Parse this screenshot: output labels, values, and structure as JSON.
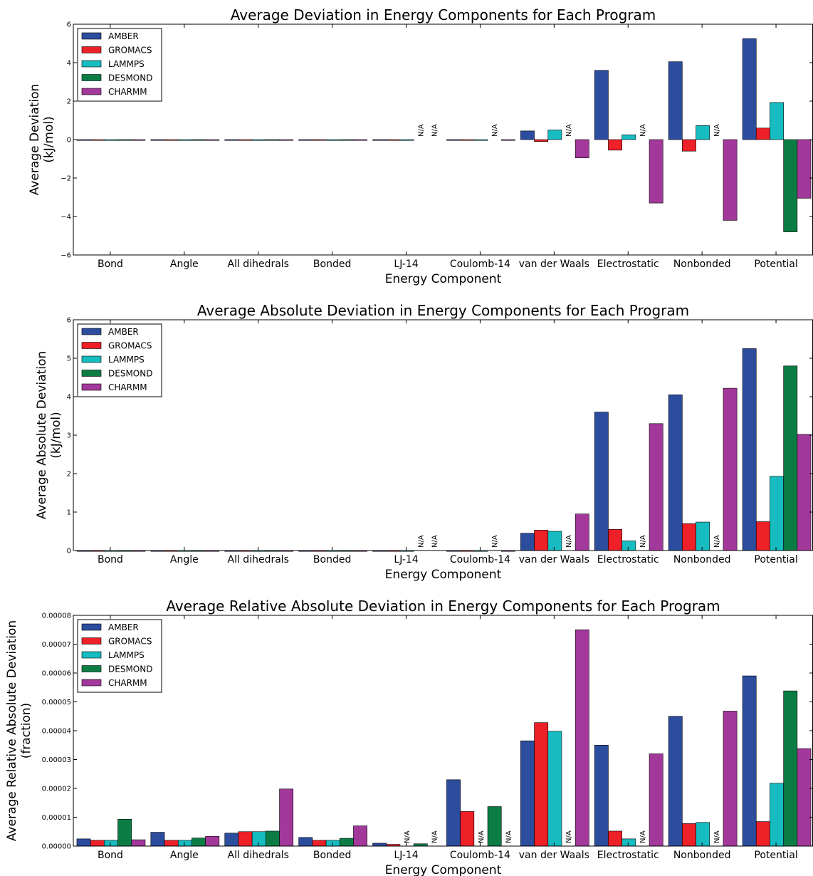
{
  "chart_data": [
    {
      "type": "bar",
      "title": "Average Deviation in Energy Components for Each Program",
      "xlabel": "Energy Component",
      "ylabel": [
        "Average Deviation",
        "(kJ/mol)"
      ],
      "ylim": [
        -6,
        6
      ],
      "yticks": [
        "−6",
        "−4",
        "−2",
        "0",
        "2",
        "4",
        "6"
      ],
      "categories": [
        "Bond",
        "Angle",
        "All dihedrals",
        "Bonded",
        "LJ-14",
        "Coulomb-14",
        "van der Waals",
        "Electrostatic",
        "Nonbonded",
        "Potential"
      ],
      "series": [
        {
          "name": "AMBER",
          "color": "#2c4c9e",
          "values": [
            0,
            0,
            0,
            0,
            0,
            0,
            0.45,
            3.6,
            4.05,
            5.25
          ]
        },
        {
          "name": "GROMACS",
          "color": "#ee2028",
          "values": [
            0,
            0,
            0,
            0,
            0,
            0,
            -0.1,
            -0.55,
            -0.6,
            0.6
          ]
        },
        {
          "name": "LAMMPS",
          "color": "#16bcbf",
          "values": [
            0,
            0,
            0,
            0,
            0,
            0,
            0.5,
            0.25,
            0.73,
            1.93
          ]
        },
        {
          "name": "DESMOND",
          "color": "#0b7d44",
          "values": [
            0,
            0,
            0,
            0,
            null,
            null,
            null,
            null,
            null,
            -4.8
          ]
        },
        {
          "name": "CHARMM",
          "color": "#a2389a",
          "values": [
            0,
            0,
            0,
            0,
            null,
            0,
            -0.95,
            -3.3,
            -4.2,
            -3.05
          ]
        }
      ],
      "na_label": "N/A",
      "legend": "top-left",
      "grid": false
    },
    {
      "type": "bar",
      "title": "Average Absolute Deviation in Energy Components for Each Program",
      "xlabel": "Energy Component",
      "ylabel": [
        "Average Absolute Deviation",
        "(kJ/mol)"
      ],
      "ylim": [
        0,
        6
      ],
      "yticks": [
        "0",
        "1",
        "2",
        "3",
        "4",
        "5",
        "6"
      ],
      "categories": [
        "Bond",
        "Angle",
        "All dihedrals",
        "Bonded",
        "LJ-14",
        "Coulomb-14",
        "van der Waals",
        "Electrostatic",
        "Nonbonded",
        "Potential"
      ],
      "series": [
        {
          "name": "AMBER",
          "color": "#2c4c9e",
          "values": [
            0,
            0,
            0,
            0,
            0,
            0,
            0.45,
            3.6,
            4.05,
            5.25
          ]
        },
        {
          "name": "GROMACS",
          "color": "#ee2028",
          "values": [
            0,
            0,
            0,
            0,
            0,
            0,
            0.53,
            0.55,
            0.7,
            0.75
          ]
        },
        {
          "name": "LAMMPS",
          "color": "#16bcbf",
          "values": [
            0,
            0,
            0,
            0,
            0,
            0,
            0.5,
            0.25,
            0.74,
            1.93
          ]
        },
        {
          "name": "DESMOND",
          "color": "#0b7d44",
          "values": [
            0,
            0,
            0,
            0,
            null,
            null,
            null,
            null,
            null,
            4.8
          ]
        },
        {
          "name": "CHARMM",
          "color": "#a2389a",
          "values": [
            0,
            0,
            0,
            0,
            null,
            0,
            0.95,
            3.3,
            4.22,
            3.02
          ]
        }
      ],
      "na_label": "N/A",
      "legend": "top-left",
      "grid": false
    },
    {
      "type": "bar",
      "title": "Average Relative Absolute Deviation in Energy Components for Each Program",
      "xlabel": "Energy Component",
      "ylabel": [
        "Average Relative Absolute Deviation",
        "(fraction)"
      ],
      "ylim": [
        0,
        8e-05
      ],
      "yticks": [
        "0.00000",
        "0.00001",
        "0.00002",
        "0.00003",
        "0.00004",
        "0.00005",
        "0.00006",
        "0.00007",
        "0.00008"
      ],
      "categories": [
        "Bond",
        "Angle",
        "All dihedrals",
        "Bonded",
        "LJ-14",
        "Coulomb-14",
        "van der Waals",
        "Electrostatic",
        "Nonbonded",
        "Potential"
      ],
      "series": [
        {
          "name": "AMBER",
          "color": "#2c4c9e",
          "values": [
            2.5e-06,
            4.8e-06,
            4.5e-06,
            3e-06,
            1e-06,
            2.3e-05,
            3.65e-05,
            3.5e-05,
            4.5e-05,
            5.9e-05
          ]
        },
        {
          "name": "GROMACS",
          "color": "#ee2028",
          "values": [
            2e-06,
            2e-06,
            5e-06,
            2e-06,
            6e-07,
            1.2e-05,
            4.28e-05,
            5.2e-06,
            7.8e-06,
            8.5e-06
          ]
        },
        {
          "name": "LAMMPS",
          "color": "#16bcbf",
          "values": [
            2e-06,
            2e-06,
            5e-06,
            2e-06,
            null,
            null,
            3.98e-05,
            2.5e-06,
            8.2e-06,
            2.18e-05
          ]
        },
        {
          "name": "DESMOND",
          "color": "#0b7d44",
          "values": [
            9.3e-06,
            2.8e-06,
            5.2e-06,
            2.7e-06,
            8e-07,
            1.37e-05,
            null,
            null,
            null,
            5.38e-05
          ]
        },
        {
          "name": "CHARMM",
          "color": "#a2389a",
          "values": [
            2.2e-06,
            3.4e-06,
            1.98e-05,
            7e-06,
            null,
            null,
            7.5e-05,
            3.2e-05,
            4.68e-05,
            3.38e-05
          ]
        }
      ],
      "na_label": "N/A",
      "legend": "top-left",
      "grid": false
    }
  ]
}
